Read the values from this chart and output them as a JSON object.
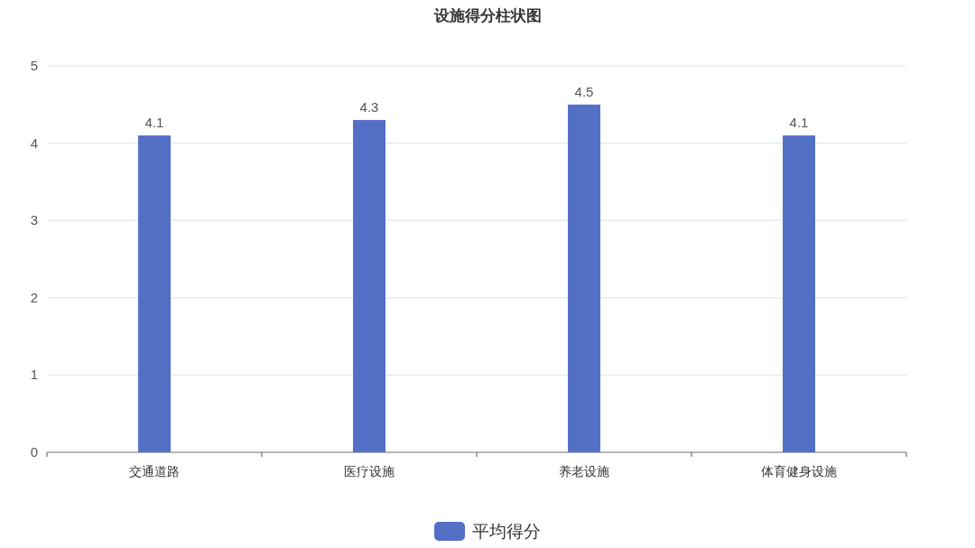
{
  "chart_data": {
    "type": "bar",
    "title": "设施得分柱状图",
    "categories": [
      "交通道路",
      "医疗设施",
      "养老设施",
      "体育健身设施"
    ],
    "series": [
      {
        "name": "平均得分",
        "color": "#5470c6",
        "values": [
          4.1,
          4.3,
          4.5,
          4.1
        ]
      }
    ],
    "ylim": [
      0,
      5
    ],
    "yticks": [
      0,
      1,
      2,
      3,
      4,
      5
    ],
    "grid": "y",
    "legend": "bottom",
    "data_labels": true
  }
}
